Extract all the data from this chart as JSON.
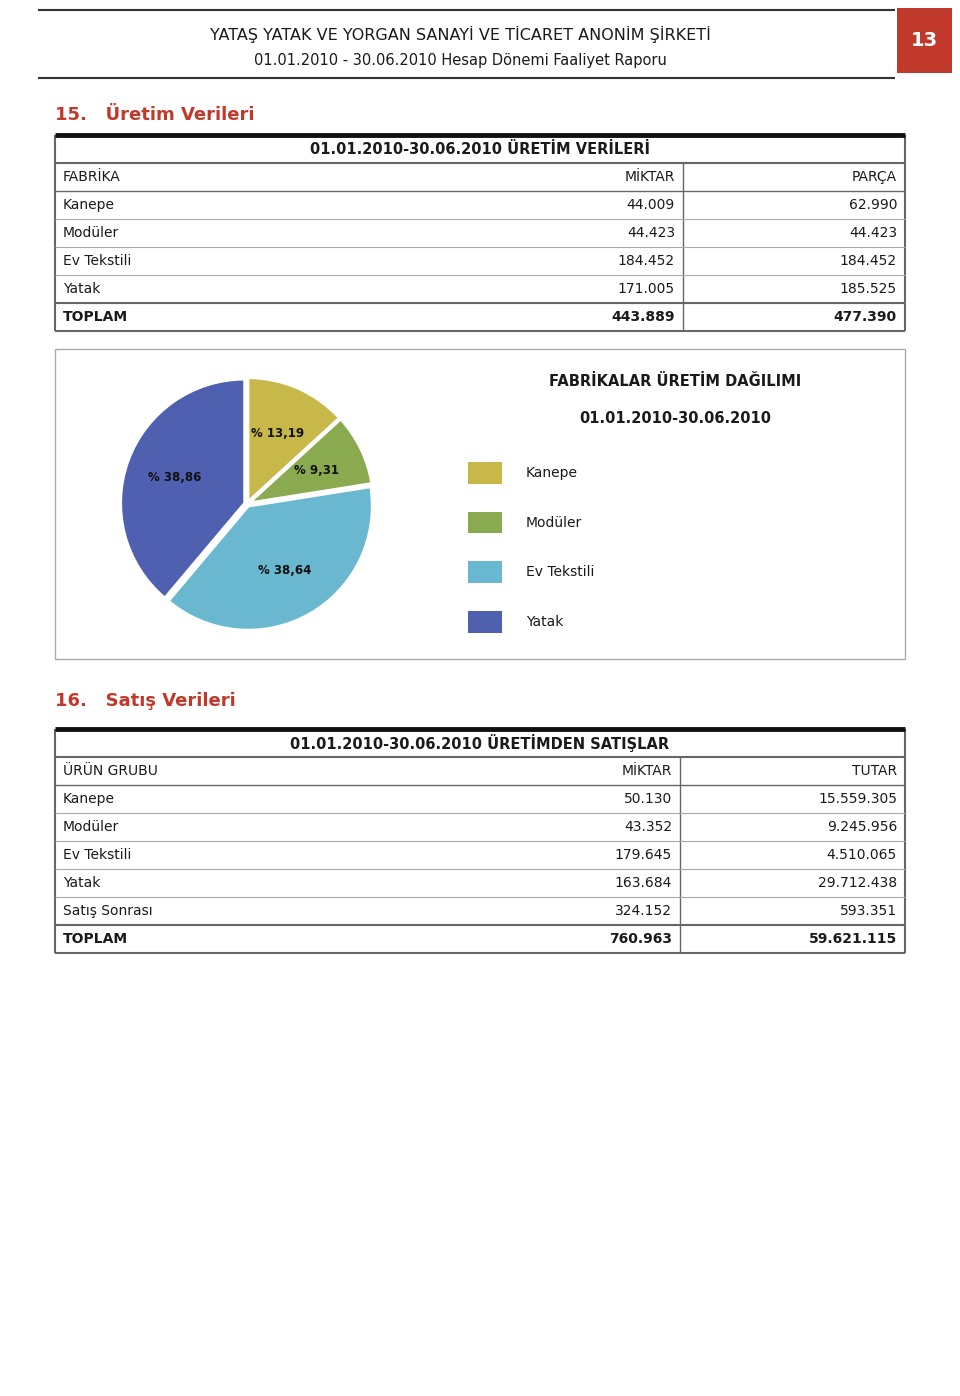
{
  "header_line1": "YATAŞ YATAK VE YORGAN SANAYİ VE TİCARET ANONİM ŞİRKETİ",
  "header_line2": "01.01.2010 - 30.06.2010 Hesap Dönemi Faaliyet Raporu",
  "page_number": "13",
  "page_bg": "#c0392b",
  "section15_title": "15.   Üretim Verileri",
  "table1_header_title": "01.01.2010-30.06.2010 ÜRETİM VERİLERİ",
  "table1_cols": [
    "FABRİKA",
    "MİKTAR",
    "PARÇA"
  ],
  "table1_rows": [
    [
      "Kanepe",
      "44.009",
      "62.990"
    ],
    [
      "Modüler",
      "44.423",
      "44.423"
    ],
    [
      "Ev Tekstili",
      "184.452",
      "184.452"
    ],
    [
      "Yatak",
      "171.005",
      "185.525"
    ]
  ],
  "table1_total": [
    "TOPLAM",
    "443.889",
    "477.390"
  ],
  "pie_title_line1": "FABRİKALAR ÜRETİM DAĞILIMI",
  "pie_title_line2": "01.01.2010-30.06.2010",
  "pie_values": [
    13.19,
    9.31,
    38.64,
    38.86
  ],
  "pie_labels": [
    "% 13,19",
    "% 9,31",
    "% 38,64",
    "% 38,86"
  ],
  "pie_legend_labels": [
    "Kanepe",
    "Modüler",
    "Ev Tekstili",
    "Yatak"
  ],
  "pie_colors": [
    "#c8b84a",
    "#8aaa50",
    "#6ab8d0",
    "#5060b0"
  ],
  "pie_explode": [
    0.02,
    0.02,
    0.02,
    0.02
  ],
  "section16_title": "16.   Satış Verileri",
  "table2_header_title": "01.01.2010-30.06.2010 ÜRETİMDEN SATIŞLAR",
  "table2_cols": [
    "ÜRÜN GRUBU",
    "MİKTAR",
    "TUTAR"
  ],
  "table2_rows": [
    [
      "Kanepe",
      "50.130",
      "15.559.305"
    ],
    [
      "Modüler",
      "43.352",
      "9.245.956"
    ],
    [
      "Ev Tekstili",
      "179.645",
      "4.510.065"
    ],
    [
      "Yatak",
      "163.684",
      "29.712.438"
    ],
    [
      "Satış Sonrası",
      "324.152",
      "593.351"
    ]
  ],
  "table2_total": [
    "TOPLAM",
    "760.963",
    "59.621.115"
  ],
  "red_color": "#c0392b",
  "dark_color": "#1a1a1a",
  "border_dark": "#333333",
  "border_mid": "#666666",
  "border_light": "#aaaaaa"
}
